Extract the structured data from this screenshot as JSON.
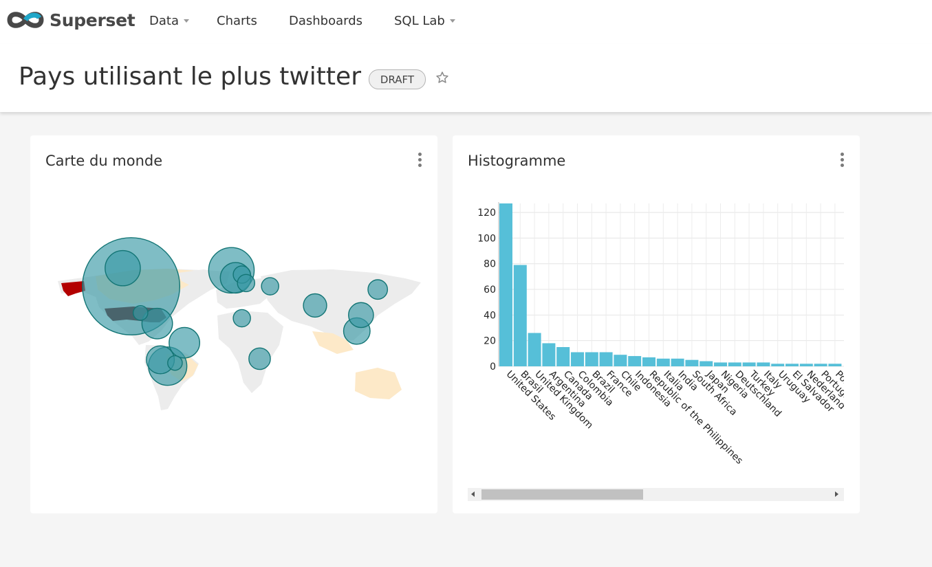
{
  "app": {
    "name": "Superset",
    "logo_icon": "infinity-logo-icon"
  },
  "nav": {
    "items": [
      {
        "label": "Data",
        "has_dropdown": true
      },
      {
        "label": "Charts",
        "has_dropdown": false
      },
      {
        "label": "Dashboards",
        "has_dropdown": false
      },
      {
        "label": "SQL Lab",
        "has_dropdown": true
      }
    ]
  },
  "dashboard": {
    "title": "Pays utilisant le plus twitter",
    "status": "DRAFT",
    "favorite_icon": "star-outline-icon"
  },
  "cards": {
    "map": {
      "title": "Carte du monde",
      "menu_icon": "vertical-dots-icon"
    },
    "histogram": {
      "title": "Histogramme",
      "menu_icon": "vertical-dots-icon"
    }
  },
  "colors": {
    "bar": "#56bfd8",
    "bubble": "#3b9aa6",
    "bubble_stroke": "#137575",
    "highlight_country": "#660000",
    "land": "#ececec",
    "land_highlight": "#fde9c8"
  },
  "chart_data": [
    {
      "type": "bar",
      "chart": "histogram",
      "categories": [
        "United States",
        "Brasil",
        "United Kingdom",
        "Argentina",
        "Canada",
        "Colombia",
        "Brazil",
        "France",
        "Chile",
        "Indonesia",
        "Republic of the Philippines",
        "Italia",
        "India",
        "South Africa",
        "Japan",
        "Nigeria",
        "Deutschland",
        "Turkey",
        "Italy",
        "Uruguay",
        "El Salvador",
        "Nederland",
        "Portugal",
        "Pol"
      ],
      "values": [
        127,
        79,
        26,
        18,
        15,
        11,
        11,
        11,
        9,
        8,
        7,
        6,
        6,
        5,
        4,
        3,
        3,
        3,
        3,
        2,
        2,
        2,
        2,
        2
      ],
      "ylim": [
        0,
        127
      ],
      "y_ticks": [
        0,
        20,
        40,
        60,
        80,
        100,
        120
      ],
      "grid": true
    },
    {
      "type": "scatter",
      "chart": "world-map-bubbles",
      "note_axes": "longitude/latitude",
      "points": [
        {
          "lon": -98,
          "lat": 39,
          "size": 127
        },
        {
          "lon": -106,
          "lat": 56,
          "size": 15
        },
        {
          "lon": -47,
          "lat": -14,
          "size": 11
        },
        {
          "lon": -63,
          "lat": -36,
          "size": 18
        },
        {
          "lon": -70,
          "lat": -30,
          "size": 9
        },
        {
          "lon": -73,
          "lat": 4,
          "size": 11
        },
        {
          "lon": -2,
          "lat": 54,
          "size": 26
        },
        {
          "lon": 2,
          "lat": 47,
          "size": 11
        },
        {
          "lon": 8,
          "lat": 50,
          "size": 3
        },
        {
          "lon": 12,
          "lat": 42,
          "size": 3
        },
        {
          "lon": 35,
          "lat": 39,
          "size": 3
        },
        {
          "lon": 78,
          "lat": 21,
          "size": 6
        },
        {
          "lon": 118,
          "lat": -3,
          "size": 8
        },
        {
          "lon": 138,
          "lat": 36,
          "size": 4
        },
        {
          "lon": 8,
          "lat": 9,
          "size": 3
        },
        {
          "lon": 25,
          "lat": -29,
          "size": 5
        },
        {
          "lon": -56,
          "lat": -33,
          "size": 2
        },
        {
          "lon": -89,
          "lat": 14,
          "size": 2
        },
        {
          "lon": 122,
          "lat": 12,
          "size": 7
        }
      ]
    }
  ]
}
